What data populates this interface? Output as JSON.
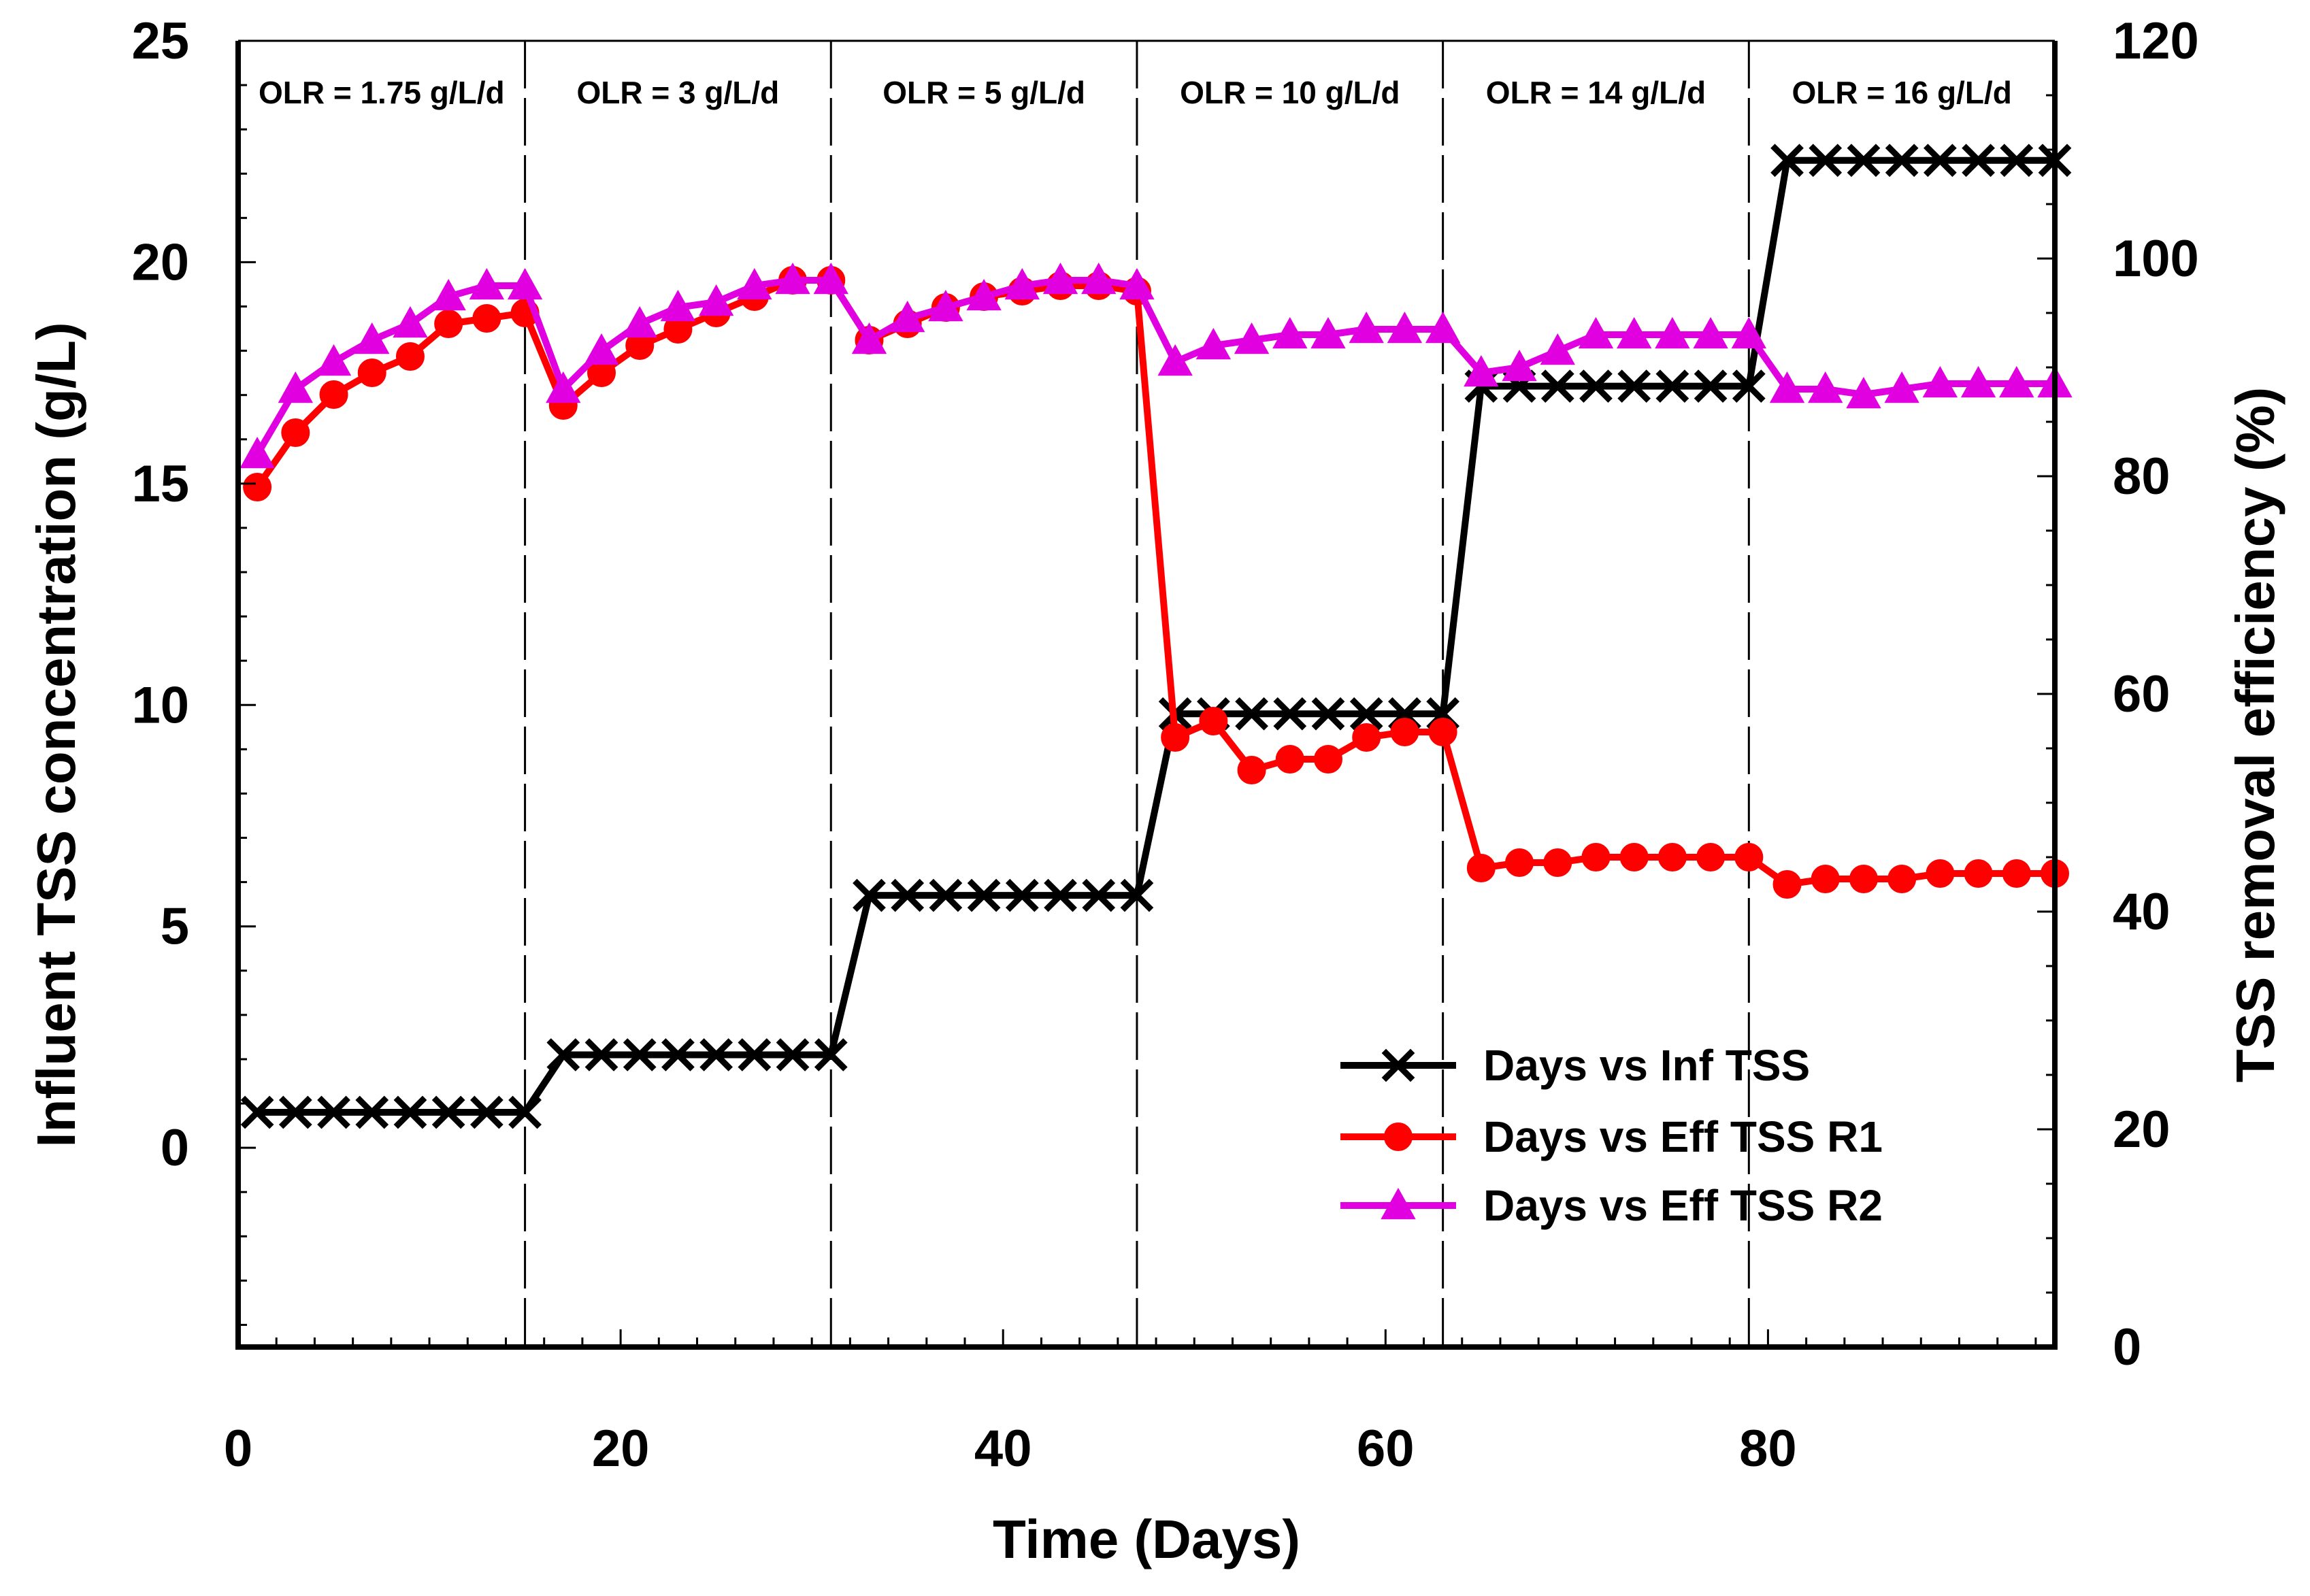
{
  "chart_data": {
    "type": "line",
    "title": "",
    "xlabel": "Time (Days)",
    "ylabel": "Influent TSS concentration (g/L)",
    "y2label": "TSS removal efficiency (%)",
    "xlim": [
      0,
      95
    ],
    "ylim": [
      -4.5,
      25
    ],
    "y2lim": [
      0,
      120
    ],
    "xticks": [
      0,
      20,
      40,
      60,
      80
    ],
    "yticks": [
      0,
      5,
      10,
      15,
      20,
      25
    ],
    "y2ticks": [
      0,
      20,
      40,
      60,
      80,
      100,
      120
    ],
    "phase_boundaries": [
      15,
      31,
      47,
      63,
      79
    ],
    "phases": [
      {
        "label": "OLR = 1.75 g/L/d",
        "center": 7.5
      },
      {
        "label": "OLR = 3 g/L/d",
        "center": 23
      },
      {
        "label": "OLR = 5 g/L/d",
        "center": 39
      },
      {
        "label": "OLR = 10 g/L/d",
        "center": 55
      },
      {
        "label": "OLR = 14 g/L/d",
        "center": 71
      },
      {
        "label": "OLR = 16 g/L/d",
        "center": 87
      }
    ],
    "legend_position": "bottom-right",
    "series": [
      {
        "name": "Days vs Inf TSS",
        "axis": "left",
        "marker": "x",
        "color": "#000000",
        "x": [
          1,
          3,
          5,
          7,
          9,
          11,
          13,
          15,
          17,
          19,
          21,
          23,
          25,
          27,
          29,
          31,
          33,
          35,
          37,
          39,
          41,
          43,
          45,
          47,
          49,
          51,
          53,
          55,
          57,
          59,
          61,
          63,
          65,
          67,
          69,
          71,
          73,
          75,
          77,
          79,
          81,
          83,
          85,
          87,
          89,
          91,
          93,
          95
        ],
        "y": [
          0.8,
          0.8,
          0.8,
          0.8,
          0.8,
          0.8,
          0.8,
          0.8,
          2.1,
          2.1,
          2.1,
          2.1,
          2.1,
          2.1,
          2.1,
          2.1,
          5.7,
          5.7,
          5.7,
          5.7,
          5.7,
          5.7,
          5.7,
          5.7,
          9.8,
          9.8,
          9.8,
          9.8,
          9.8,
          9.8,
          9.8,
          9.8,
          17.2,
          17.2,
          17.2,
          17.2,
          17.2,
          17.2,
          17.2,
          17.2,
          22.3,
          22.3,
          22.3,
          22.3,
          22.3,
          22.3,
          22.3,
          22.3
        ]
      },
      {
        "name": "Days vs Eff TSS R1",
        "axis": "right",
        "marker": "circle",
        "color": "#ff0000",
        "x": [
          1,
          3,
          5,
          7,
          9,
          11,
          13,
          15,
          17,
          19,
          21,
          23,
          25,
          27,
          29,
          31,
          33,
          35,
          37,
          39,
          41,
          43,
          45,
          47,
          49,
          51,
          53,
          55,
          57,
          59,
          61,
          63,
          65,
          67,
          69,
          71,
          73,
          75,
          77,
          79,
          81,
          83,
          85,
          87,
          89,
          91,
          93,
          95
        ],
        "y": [
          79,
          84,
          87.5,
          89.5,
          91,
          94,
          94.5,
          95,
          86.5,
          89.5,
          92,
          93.5,
          95,
          96.5,
          98,
          98,
          92.5,
          94,
          95.5,
          96.5,
          97,
          97.5,
          97.5,
          97,
          56,
          57.5,
          53,
          54,
          54,
          56,
          56.5,
          56.5,
          44,
          44.5,
          44.5,
          45,
          45,
          45,
          45,
          45,
          42.5,
          43,
          43,
          43,
          43.5,
          43.5,
          43.5,
          43.5
        ]
      },
      {
        "name": "Days vs Eff TSS R2",
        "axis": "right",
        "marker": "triangle",
        "color": "#e000e0",
        "x": [
          1,
          3,
          5,
          7,
          9,
          11,
          13,
          15,
          17,
          19,
          21,
          23,
          25,
          27,
          29,
          31,
          33,
          35,
          37,
          39,
          41,
          43,
          45,
          47,
          49,
          51,
          53,
          55,
          57,
          59,
          61,
          63,
          65,
          67,
          69,
          71,
          73,
          75,
          77,
          79,
          81,
          83,
          85,
          87,
          89,
          91,
          93,
          95
        ],
        "y": [
          82,
          88,
          90.5,
          92.5,
          94,
          96.5,
          97.5,
          97.5,
          88,
          91.5,
          94,
          95.5,
          96,
          97.5,
          98,
          98,
          92.5,
          94.5,
          95.5,
          96.5,
          97.5,
          98,
          98,
          97.5,
          90.5,
          92,
          92.5,
          93,
          93,
          93.5,
          93.5,
          93.5,
          89.5,
          90,
          91.5,
          93,
          93,
          93,
          93,
          93,
          88,
          88,
          87.5,
          88,
          88.5,
          88.5,
          88.5,
          88.5
        ]
      }
    ]
  }
}
